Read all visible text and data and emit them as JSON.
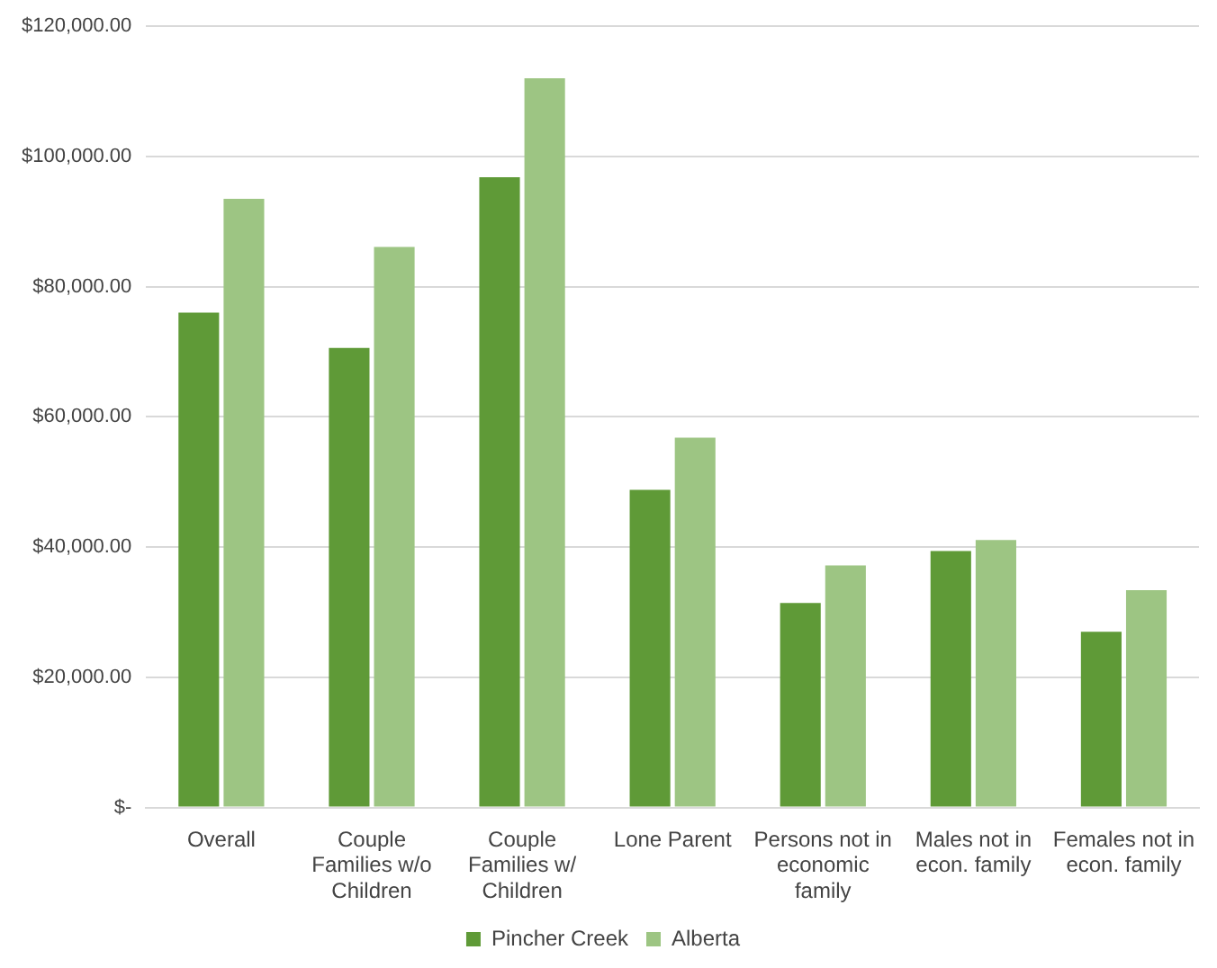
{
  "chart_data": {
    "type": "bar",
    "categories": [
      "Overall",
      "Couple Families w/o Children",
      "Couple Families w/ Children",
      "Lone Parent",
      "Persons not in economic family",
      "Males not in econ. family",
      "Females not in econ. family"
    ],
    "series": [
      {
        "name": "Pincher Creek",
        "color": "#5f9a37",
        "values": [
          76000,
          70600,
          96800,
          48800,
          31400,
          39400,
          27000
        ]
      },
      {
        "name": "Alberta",
        "color": "#9dc583",
        "values": [
          93500,
          86100,
          112000,
          56800,
          37200,
          41100,
          33400
        ]
      }
    ],
    "ylim": [
      0,
      120000
    ],
    "yticks": [
      {
        "value": 0,
        "label": "$-"
      },
      {
        "value": 20000,
        "label": "$20,000.00"
      },
      {
        "value": 40000,
        "label": "$40,000.00"
      },
      {
        "value": 60000,
        "label": "$60,000.00"
      },
      {
        "value": 80000,
        "label": "$80,000.00"
      },
      {
        "value": 100000,
        "label": "$100,000.00"
      },
      {
        "value": 120000,
        "label": "$120,000.00"
      }
    ],
    "grid": "y",
    "legend": "bottom"
  }
}
